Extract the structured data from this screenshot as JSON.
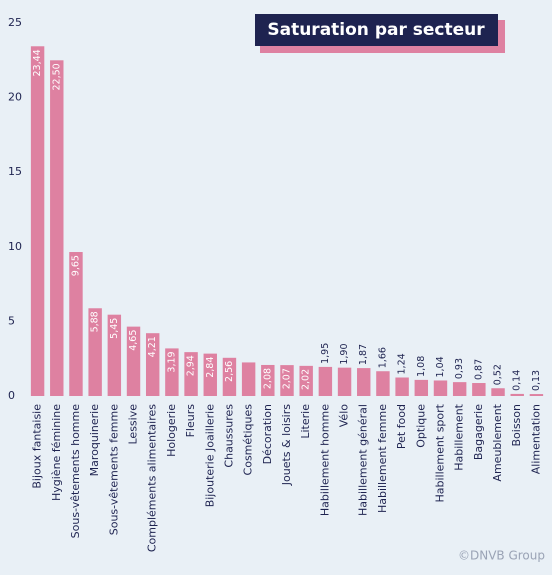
{
  "chart_data": {
    "type": "bar",
    "title": "Saturation par secteur",
    "categories": [
      "Bijoux fantaisie",
      "Hygiène féminine",
      "Sous-vêtements homme",
      "Maroquinerie",
      "Sous-vêtements femme",
      "Lessive",
      "Compléments alimentaires",
      "Hologerie",
      "Fleurs",
      "Bijouterie Joaillerie",
      "Chaussures",
      "Cosmétiques",
      "Décoration",
      "Jouets & loisirs",
      "Literie",
      "Habillement homme",
      "Vélo",
      "Habillement général",
      "Habillement femme",
      "Pet food",
      "Optique",
      "Habillement sport",
      "Habillement",
      "Bagagerie",
      "Ameublement",
      "Boisson",
      "Alimentation"
    ],
    "values": [
      23.44,
      22.5,
      9.65,
      5.88,
      5.45,
      4.65,
      4.21,
      3.19,
      2.94,
      2.84,
      2.56,
      2.25,
      2.08,
      2.07,
      2.02,
      1.95,
      1.9,
      1.87,
      1.66,
      1.24,
      1.08,
      1.04,
      0.93,
      0.87,
      0.52,
      0.14,
      0.13
    ],
    "value_labels": [
      "23,44",
      "22,50",
      "9,65",
      "5,88",
      "5,45",
      "4,65",
      "4,21",
      "3,19",
      "2,94",
      "2,84",
      "2,56",
      null,
      "2,08",
      "2,07",
      "2,02",
      "1,95",
      "1,90",
      "1,87",
      "1,66",
      "1,24",
      "1,08",
      "1,04",
      "0,93",
      "0,87",
      "0,52",
      "0,14",
      "0,13"
    ],
    "color": "#de81a1",
    "ylim": [
      0,
      25
    ],
    "yticks": [
      0,
      5,
      10,
      15,
      20,
      25
    ],
    "grid": false,
    "source": "©DNVB Group"
  }
}
